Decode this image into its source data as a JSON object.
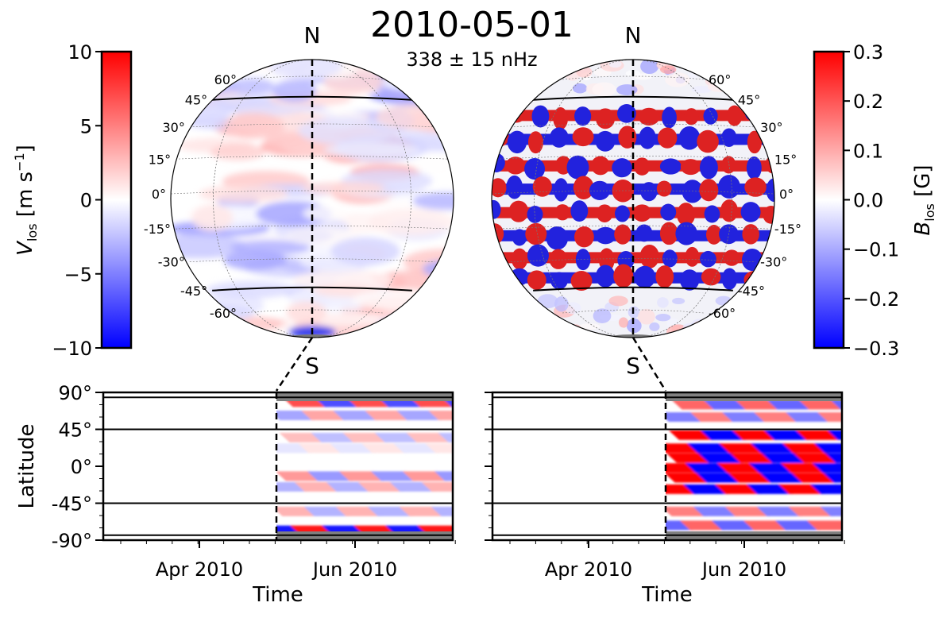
{
  "chart_data": {
    "type": "heatmap",
    "title": "2010-05-01",
    "subtitle": "338 ± 15 nHz",
    "pole_labels": {
      "north": "N",
      "south": "S"
    },
    "globe_latitude_labels": [
      "60°",
      "45°",
      "30°",
      "15°",
      "0°",
      "-15°",
      "-30°",
      "-45°",
      "-60°"
    ],
    "globe_latitudes": [
      60,
      45,
      30,
      15,
      0,
      -15,
      -30,
      -45,
      -60
    ],
    "colorbars": [
      {
        "name": "velocity",
        "label_main": "V",
        "label_sub": "los",
        "label_unit": " [m s",
        "label_sup": "−1",
        "label_end": "]",
        "range": [
          -10,
          10
        ],
        "ticks": [
          "10",
          "5",
          "0",
          "−5",
          "−10"
        ],
        "tick_values": [
          10,
          5,
          0,
          -5,
          -10
        ],
        "colormap": "bwr"
      },
      {
        "name": "magnetic",
        "label_main": "B",
        "label_sub": "los",
        "label_unit": " [G]",
        "range": [
          -0.3,
          0.3
        ],
        "ticks": [
          "0.3",
          "0.2",
          "0.1",
          "0.0",
          "−0.1",
          "−0.2",
          "−0.3"
        ],
        "tick_values": [
          0.3,
          0.2,
          0.1,
          0.0,
          -0.1,
          -0.2,
          -0.3
        ],
        "colormap": "bwr"
      }
    ],
    "panels": [
      {
        "name": "velocity-time-latitude",
        "ylabel": "Latitude",
        "xlabel": "Time",
        "ylim": [
          -90,
          90
        ],
        "yticks": [
          "90°",
          "45°",
          "0°",
          "-45°",
          "-90°"
        ],
        "ytick_values": [
          90,
          45,
          0,
          -45,
          -90
        ],
        "xticks": [
          "Apr 2010",
          "Jun 2010"
        ],
        "hlines": [
          84,
          45,
          -45,
          -84
        ],
        "data_start": "2010-05-01"
      },
      {
        "name": "magnetic-time-latitude",
        "ylabel": "",
        "xlabel": "Time",
        "ylim": [
          -90,
          90
        ],
        "yticks": [],
        "xticks": [
          "Apr 2010",
          "Jun 2010"
        ],
        "hlines": [
          84,
          45,
          -45,
          -84
        ],
        "data_start": "2010-05-01"
      }
    ],
    "colors": {
      "red": "#ff0000",
      "blue": "#0000ff",
      "masked": "#808080"
    }
  }
}
